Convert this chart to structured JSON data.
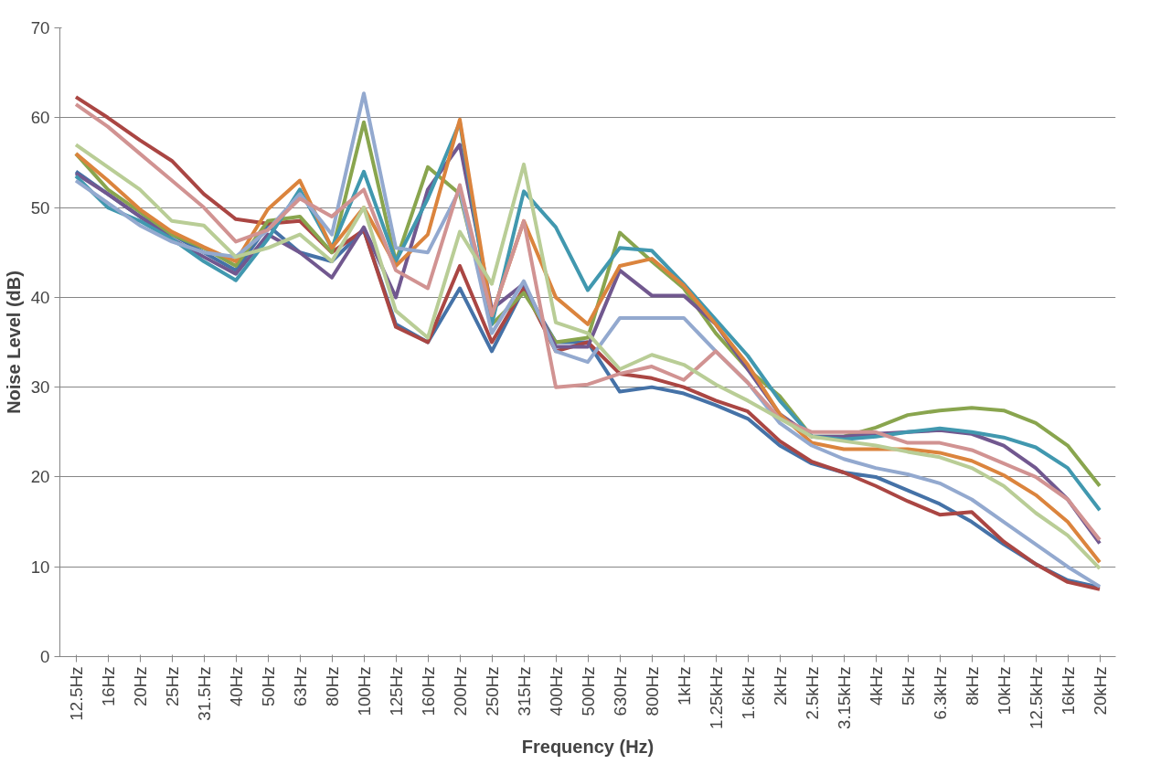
{
  "chart_data": {
    "type": "line",
    "xlabel": "Frequency (Hz)",
    "ylabel": "Noise Level (dB)",
    "categories": [
      "12.5Hz",
      "16Hz",
      "20Hz",
      "25Hz",
      "31.5Hz",
      "40Hz",
      "50Hz",
      "63Hz",
      "80Hz",
      "100Hz",
      "125Hz",
      "160Hz",
      "200Hz",
      "250Hz",
      "315Hz",
      "400Hz",
      "500Hz",
      "630Hz",
      "800Hz",
      "1kHz",
      "1.25kHz",
      "1.6kHz",
      "2kHz",
      "2.5kHz",
      "3.15kHz",
      "4kHz",
      "5kHz",
      "6.3kHz",
      "8kHz",
      "10kHz",
      "12.5kHz",
      "16kHz",
      "20kHz"
    ],
    "ylim": [
      0,
      70
    ],
    "yticks": [
      0,
      10,
      20,
      30,
      40,
      50,
      60,
      70
    ],
    "grid": "y",
    "marker": "none",
    "line_style": "solid",
    "series": [
      {
        "color": "#4572a7",
        "values": [
          54,
          51.5,
          49,
          47,
          45,
          43,
          48,
          45,
          44,
          47.5,
          37,
          35,
          41,
          34,
          41,
          35,
          35,
          29.5,
          30,
          29.3,
          28,
          26.5,
          23.5,
          21.5,
          20.5,
          20,
          18.5,
          17,
          15,
          12.5,
          10.3,
          8.5,
          7.7
        ]
      },
      {
        "color": "#aa4643",
        "values": [
          62.3,
          60,
          57.5,
          55.2,
          51.5,
          48.7,
          48.2,
          48.5,
          45,
          47.5,
          36.7,
          35,
          43.5,
          35,
          41,
          34,
          35,
          31.5,
          31,
          30,
          28.5,
          27.3,
          24,
          21.7,
          20.5,
          19,
          17.3,
          15.8,
          16.1,
          12.8,
          10.3,
          8.3,
          7.5
        ]
      },
      {
        "color": "#89a54e",
        "values": [
          56,
          52,
          49.5,
          47,
          45.5,
          43.5,
          48.5,
          49,
          45,
          59.5,
          44,
          54.5,
          51.5,
          37,
          40.5,
          35,
          35.5,
          47.2,
          44,
          41,
          36,
          32,
          29,
          24.5,
          24.5,
          25.5,
          26.9,
          27.4,
          27.7,
          27.4,
          26,
          23.5,
          19
        ]
      },
      {
        "color": "#71588f",
        "values": [
          53.8,
          51.5,
          49,
          46.5,
          44.5,
          42.6,
          47,
          45,
          42.2,
          47.8,
          40,
          52,
          57,
          38.7,
          41.5,
          34.5,
          34.5,
          43,
          40.2,
          40.2,
          37,
          32,
          27,
          24.5,
          24.5,
          24.8,
          25,
          25.2,
          24.8,
          23.5,
          21,
          17.5,
          12.6
        ]
      },
      {
        "color": "#4198af",
        "values": [
          53.5,
          50,
          48.5,
          46.5,
          44,
          41.9,
          46.5,
          52,
          45.5,
          54,
          44,
          51,
          59.5,
          37,
          51.8,
          47.8,
          40.8,
          45.5,
          45.2,
          41.5,
          37.5,
          33.5,
          28.5,
          24.5,
          24.2,
          24.5,
          25,
          25.4,
          25,
          24.4,
          23.3,
          21,
          16.3
        ]
      },
      {
        "color": "#db843d",
        "values": [
          56,
          53,
          49.8,
          47.3,
          45.6,
          44,
          49.8,
          53,
          45.5,
          50,
          43.5,
          47,
          59.8,
          38,
          48.5,
          40,
          37,
          43.5,
          44.3,
          41.3,
          37,
          32.5,
          27,
          23.8,
          23.1,
          23.1,
          23.1,
          22.7,
          21.8,
          20.2,
          18,
          15,
          10.5
        ]
      },
      {
        "color": "#93a9cf",
        "values": [
          53,
          50.5,
          48,
          46.2,
          45,
          44.5,
          47.5,
          51.5,
          47,
          62.7,
          45.5,
          45,
          52,
          36,
          41.8,
          34,
          32.8,
          37.7,
          37.7,
          37.7,
          34,
          30.5,
          26,
          23.5,
          22,
          21,
          20.3,
          19.3,
          17.5,
          15,
          12.5,
          10,
          7.8
        ]
      },
      {
        "color": "#d19392",
        "values": [
          61.5,
          59,
          56,
          53,
          50,
          46.2,
          47.5,
          51,
          49,
          52,
          43,
          41,
          52.5,
          38,
          48.5,
          30,
          30.3,
          31.5,
          32.3,
          30.8,
          34,
          30.5,
          26.5,
          25,
          25,
          25,
          23.8,
          23.8,
          23,
          21.5,
          20,
          17.5,
          13
        ]
      },
      {
        "color": "#b9cd96",
        "values": [
          57,
          54.5,
          52,
          48.5,
          48,
          44.5,
          45.5,
          47,
          44,
          50,
          38.5,
          35.5,
          47.3,
          41.5,
          54.8,
          37.2,
          36,
          32,
          33.6,
          32.5,
          30.3,
          28.5,
          26.5,
          24.5,
          24,
          23.5,
          22.8,
          22.2,
          21,
          19,
          16,
          13.5,
          9.8
        ]
      }
    ]
  }
}
